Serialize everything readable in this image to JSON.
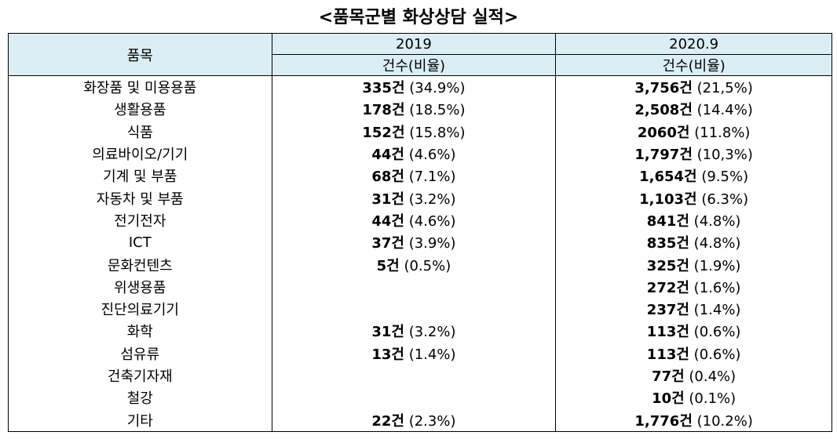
{
  "title": "<품목군별 화상상담 실적>",
  "table": {
    "header": {
      "item": "품목",
      "col1": "2019",
      "col2": "2020.9",
      "sub1": "건수(비율)",
      "sub2": "건수(비율)"
    },
    "rows": [
      {
        "item": "화장품 및 미용용품",
        "c1": {
          "count": "335건",
          "ratio": "(34.9%)"
        },
        "c2": {
          "count": "3,756건",
          "ratio": "(21,5%)"
        }
      },
      {
        "item": "생활용품",
        "c1": {
          "count": "178건",
          "ratio": "(18.5%)"
        },
        "c2": {
          "count": "2,508건",
          "ratio": "(14.4%)"
        }
      },
      {
        "item": "식품",
        "c1": {
          "count": "152건",
          "ratio": "(15.8%)"
        },
        "c2": {
          "count": "2060건",
          "ratio": "(11.8%)"
        }
      },
      {
        "item": "의료바이오/기기",
        "c1": {
          "count": "44건",
          "ratio": "(4.6%)"
        },
        "c2": {
          "count": "1,797건",
          "ratio": "(10,3%)"
        }
      },
      {
        "item": "기계 및 부품",
        "c1": {
          "count": "68건",
          "ratio": "(7.1%)"
        },
        "c2": {
          "count": "1,654건",
          "ratio": "(9.5%)"
        }
      },
      {
        "item": "자동차 및 부품",
        "c1": {
          "count": "31건",
          "ratio": "(3.2%)"
        },
        "c2": {
          "count": "1,103건",
          "ratio": "(6.3%)"
        }
      },
      {
        "item": "전기전자",
        "c1": {
          "count": "44건",
          "ratio": "(4.6%)"
        },
        "c2": {
          "count": "841건",
          "ratio": "(4.8%)"
        }
      },
      {
        "item": "ICT",
        "c1": {
          "count": "37건",
          "ratio": "(3.9%)"
        },
        "c2": {
          "count": "835건",
          "ratio": "(4.8%)"
        }
      },
      {
        "item": "문화컨텐츠",
        "c1": {
          "count": "5건",
          "ratio": "(0.5%)"
        },
        "c2": {
          "count": "325건",
          "ratio": "(1.9%)"
        }
      },
      {
        "item": "위생용품",
        "c1": null,
        "c2": {
          "count": "272건",
          "ratio": "(1.6%)"
        }
      },
      {
        "item": "진단의료기기",
        "c1": null,
        "c2": {
          "count": "237건",
          "ratio": "(1.4%)"
        }
      },
      {
        "item": "화학",
        "c1": {
          "count": "31건",
          "ratio": "(3.2%)"
        },
        "c2": {
          "count": "113건",
          "ratio": "(0.6%)"
        }
      },
      {
        "item": "섬유류",
        "c1": {
          "count": "13건",
          "ratio": "(1.4%)"
        },
        "c2": {
          "count": "113건",
          "ratio": "(0.6%)"
        }
      },
      {
        "item": "건축기자재",
        "c1": null,
        "c2": {
          "count": "77건",
          "ratio": "(0.4%)"
        }
      },
      {
        "item": "철강",
        "c1": null,
        "c2": {
          "count": "10건",
          "ratio": "(0.1%)"
        }
      },
      {
        "item": "기타",
        "c1": {
          "count": "22건",
          "ratio": "(2.3%)"
        },
        "c2": {
          "count": "1,776건",
          "ratio": "(10.2%)"
        }
      }
    ]
  }
}
